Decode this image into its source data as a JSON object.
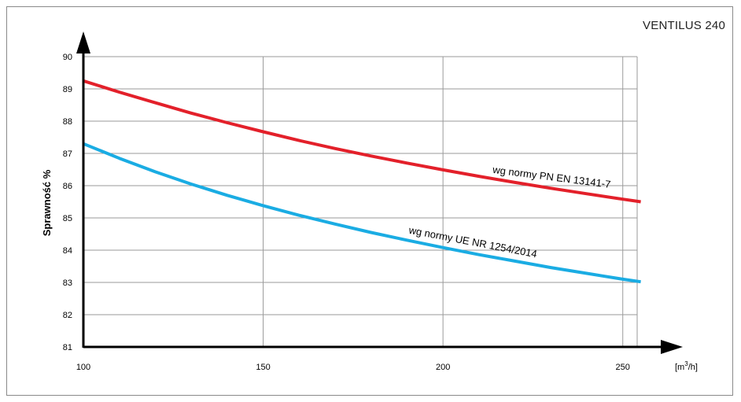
{
  "chart_data": {
    "type": "line",
    "title": "VENTILUS 240",
    "ylabel": "Sprawność %",
    "xunit_base": "[m",
    "xunit_exp": "3",
    "xunit_tail": "/h]",
    "xlim": [
      100,
      257
    ],
    "ylim": [
      81,
      90
    ],
    "xticks": [
      100,
      150,
      200,
      250
    ],
    "yticks": [
      81,
      82,
      83,
      84,
      85,
      86,
      87,
      88,
      89,
      90
    ],
    "grid": true,
    "series": [
      {
        "name": "wg normy PN EN 13141-7",
        "color": "#e3202a",
        "x": [
          100,
          110,
          120,
          130,
          140,
          150,
          160,
          170,
          180,
          190,
          200,
          210,
          220,
          230,
          240,
          250,
          255
        ],
        "y": [
          89.25,
          88.9,
          88.57,
          88.25,
          87.95,
          87.67,
          87.4,
          87.15,
          86.92,
          86.7,
          86.49,
          86.29,
          86.1,
          85.92,
          85.75,
          85.58,
          85.5
        ]
      },
      {
        "name": "wg normy UE NR 1254/2014",
        "color": "#1aace3",
        "x": [
          100,
          110,
          120,
          130,
          140,
          150,
          160,
          170,
          180,
          190,
          200,
          210,
          220,
          230,
          240,
          250,
          255
        ],
        "y": [
          87.3,
          86.85,
          86.43,
          86.05,
          85.7,
          85.38,
          85.08,
          84.81,
          84.55,
          84.31,
          84.08,
          83.86,
          83.66,
          83.46,
          83.28,
          83.1,
          83.02
        ]
      }
    ]
  }
}
